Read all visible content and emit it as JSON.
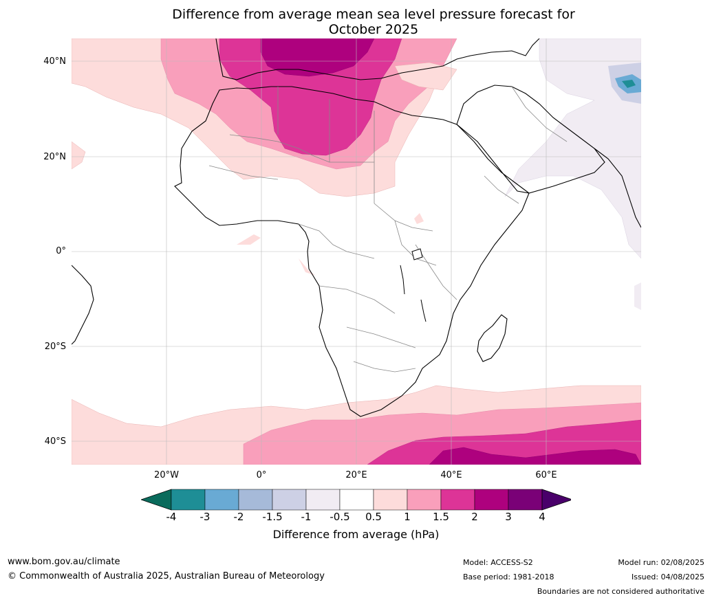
{
  "title_line1": "Difference from average mean sea level pressure forecast for",
  "title_line2": "October 2025",
  "lat_labels": [
    "40°N",
    "20°N",
    "0°",
    "20°S",
    "40°S"
  ],
  "lon_labels": [
    "20°W",
    "0°",
    "20°E",
    "40°E",
    "60°E"
  ],
  "colorbar": {
    "label": "Difference from average (hPa)",
    "ticks": [
      "-4",
      "-3",
      "-2",
      "-1.5",
      "-1",
      "-0.5",
      "0.5",
      "1",
      "1.5",
      "2",
      "3",
      "4"
    ],
    "colors": [
      "#0a6b5c",
      "#1e8e96",
      "#69aad4",
      "#a6bad9",
      "#cdd0e5",
      "#f1ecf3",
      "#ffffff",
      "#fddcdb",
      "#f99fbb",
      "#dd3497",
      "#ae017e",
      "#7a0177",
      "#49006a"
    ]
  },
  "footer": {
    "website": "www.bom.gov.au/climate",
    "copyright": "© Commonwealth of Australia 2025, Australian Bureau of Meteorology",
    "model": "Model: ACCESS-S2",
    "base_period": "Base period: 1981-2018",
    "model_run": "Model run: 02/08/2025",
    "issued": "Issued: 04/08/2025",
    "disclaimer": "Boundaries are not considered authoritative"
  }
}
